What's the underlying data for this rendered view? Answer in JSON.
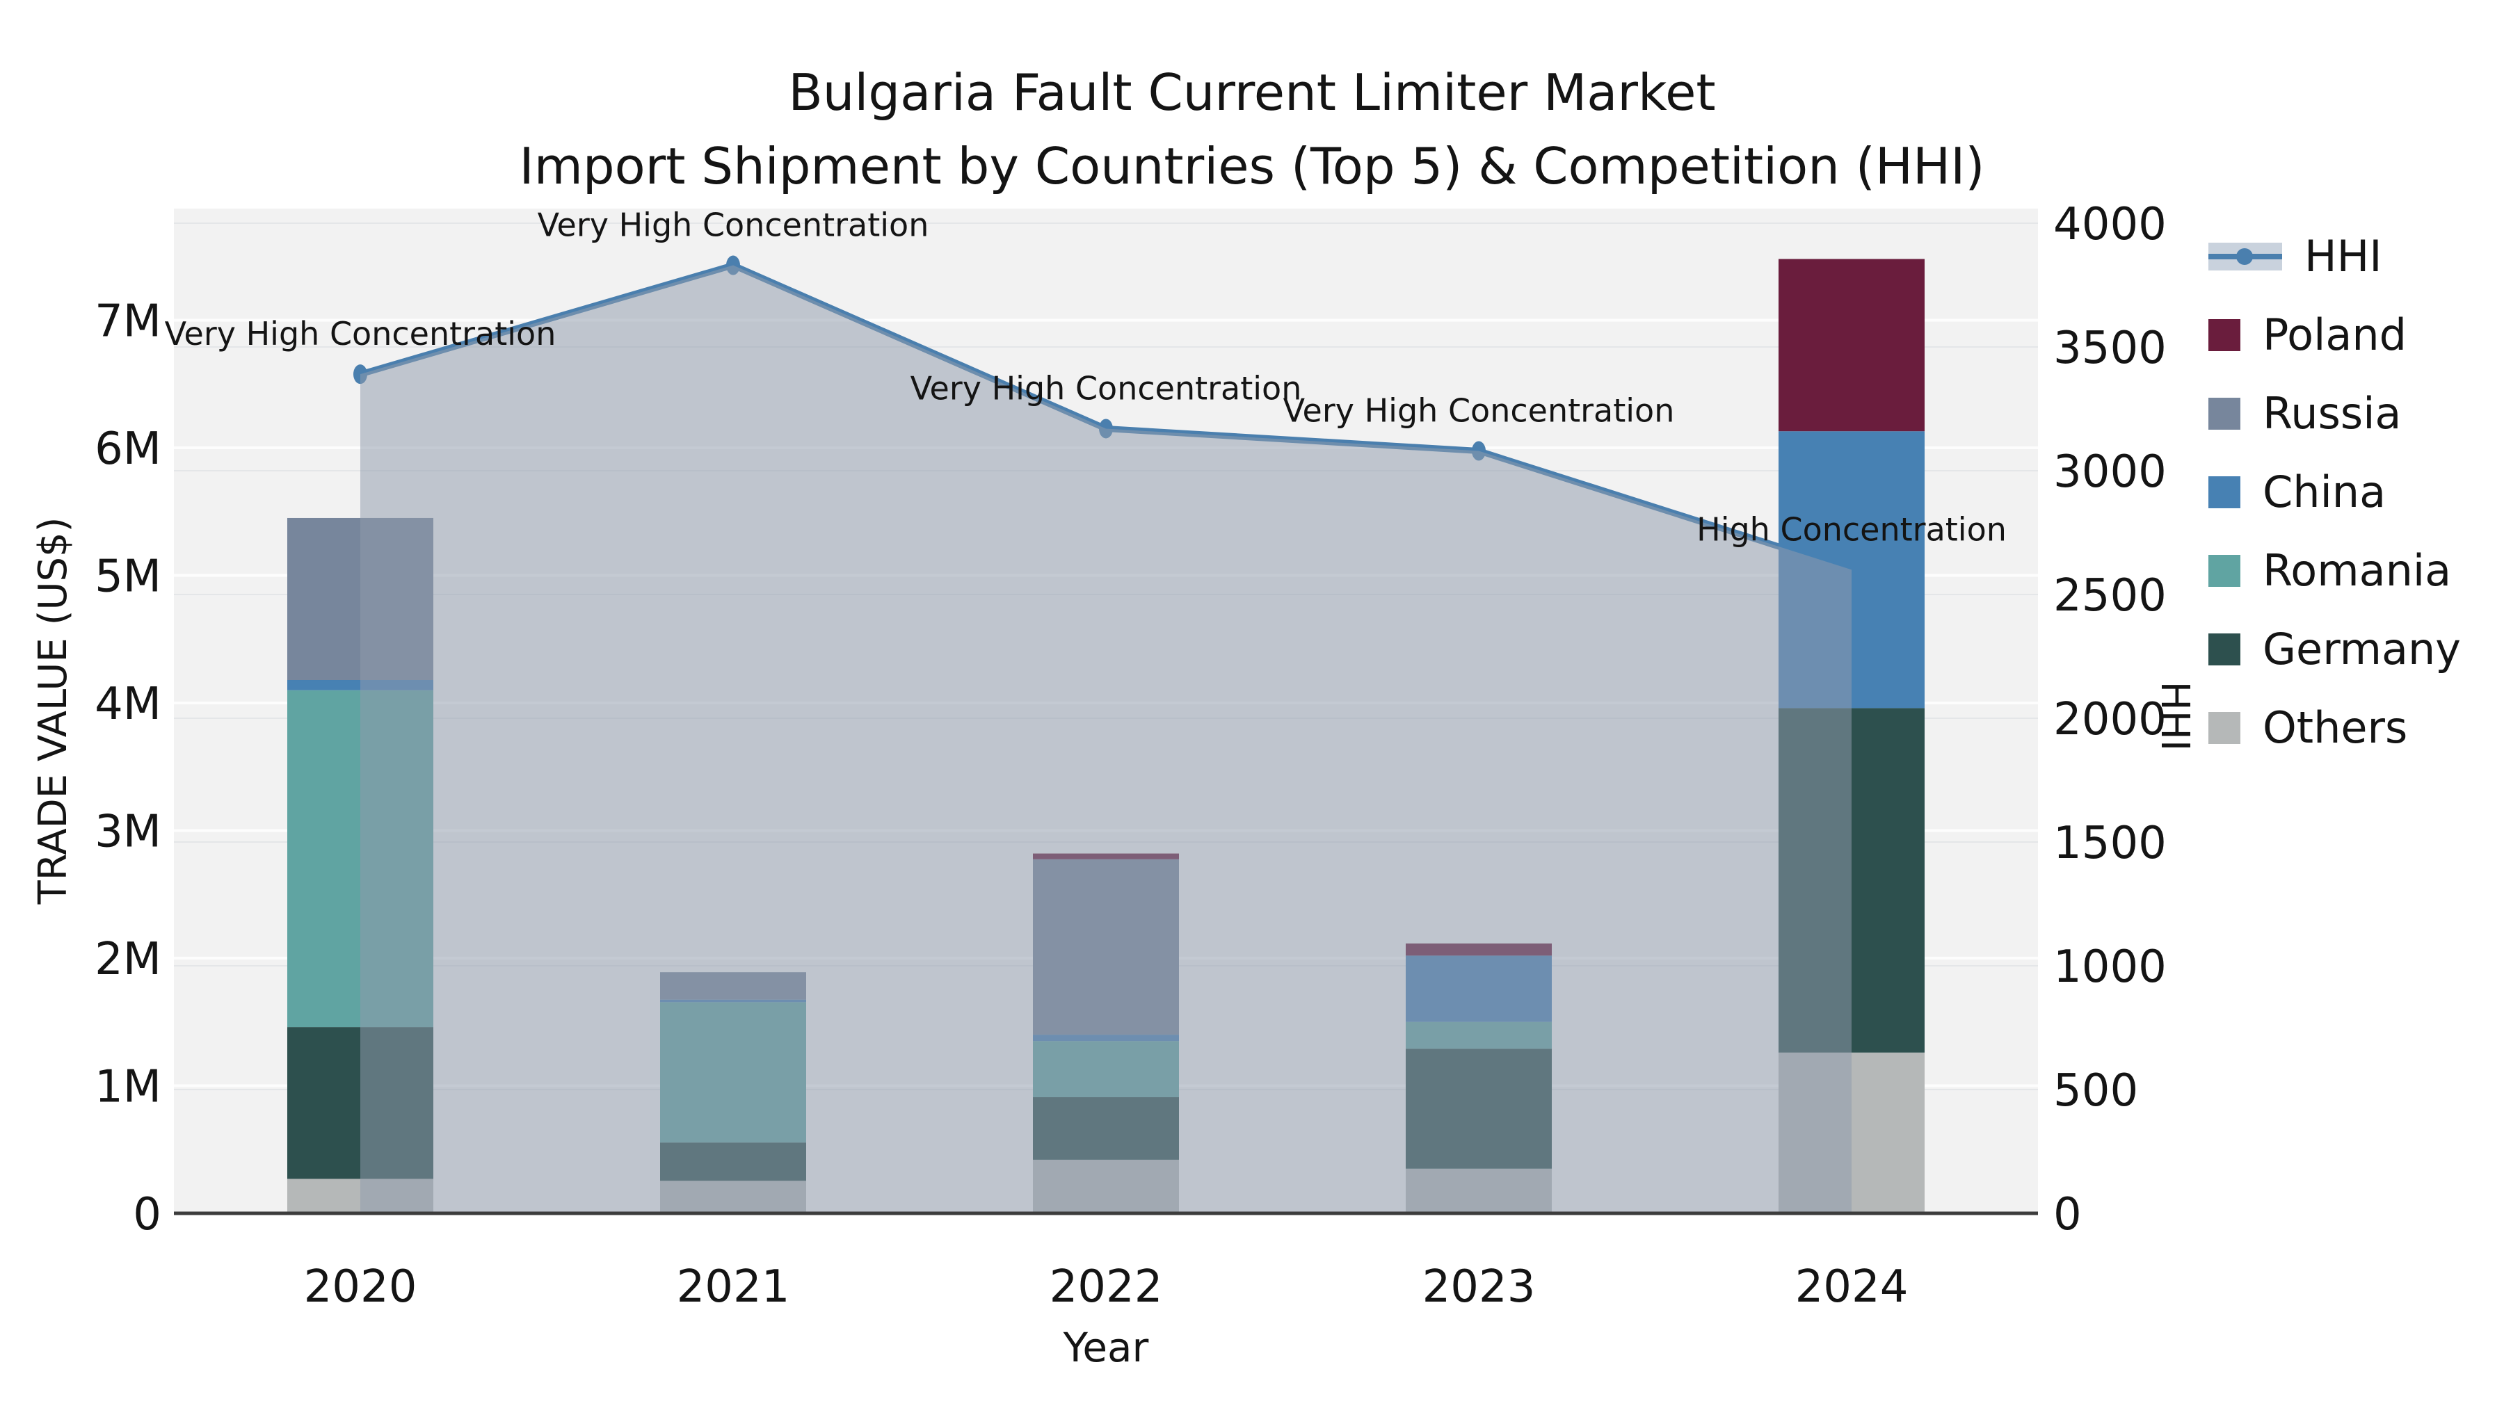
{
  "title": {
    "line1": "Bulgaria Fault Current Limiter Market",
    "line2": "Import Shipment by Countries (Top 5) & Competition (HHI)"
  },
  "chart_data": {
    "type": "bar",
    "subtype": "stacked-bars-with-line-overlay",
    "categories": [
      "2020",
      "2021",
      "2022",
      "2023",
      "2024"
    ],
    "stack_order": [
      "Others",
      "Germany",
      "Romania",
      "China",
      "Russia",
      "Poland"
    ],
    "series": [
      {
        "name": "Poland",
        "color": "#6a1d3d",
        "values": [
          0,
          0,
          45000,
          95000,
          1350000
        ]
      },
      {
        "name": "Russia",
        "color": "#77869c",
        "values": [
          1270000,
          215000,
          1375000,
          0,
          0
        ]
      },
      {
        "name": "China",
        "color": "#4781b3",
        "values": [
          80000,
          20000,
          50000,
          520000,
          2170000
        ]
      },
      {
        "name": "Romania",
        "color": "#60a4a2",
        "values": [
          2640000,
          1100000,
          440000,
          210000,
          0
        ]
      },
      {
        "name": "Germany",
        "color": "#2d504e",
        "values": [
          1190000,
          300000,
          490000,
          940000,
          2700000
        ]
      },
      {
        "name": "Others",
        "color": "#b5b8b8",
        "values": [
          270000,
          255000,
          420000,
          350000,
          1260000
        ]
      }
    ],
    "line_series": {
      "name": "HHI",
      "color": "#4a7fae",
      "area_fill": "rgba(143,156,172,0.52)",
      "values": [
        3390,
        3830,
        3170,
        3080,
        2600
      ],
      "annotations": [
        "Very High Concentration",
        "Very High Concentration",
        "Very High Concentration",
        "Very High Concentration",
        "High Concentration"
      ]
    },
    "xlabel": "Year",
    "ylabel_left": "TRADE VALUE (US$)",
    "ylabel_right": "HHI",
    "y_left_ticks": [
      "0",
      "1M",
      "2M",
      "3M",
      "4M",
      "5M",
      "6M",
      "7M"
    ],
    "y_left_tick_values": [
      0,
      1000000,
      2000000,
      3000000,
      4000000,
      5000000,
      6000000,
      7000000
    ],
    "y_right_ticks": [
      "0",
      "500",
      "1000",
      "1500",
      "2000",
      "2500",
      "3000",
      "3500",
      "4000"
    ],
    "y_right_tick_values": [
      0,
      500,
      1000,
      1500,
      2000,
      2500,
      3000,
      3500,
      4000
    ],
    "ylim_left": [
      0,
      7875000
    ],
    "ylim_right": [
      0,
      4059
    ],
    "grid": true,
    "legend_position": "right",
    "plot_bg": "#f2f2f2"
  },
  "legend": {
    "items": [
      {
        "label": "HHI",
        "type": "line",
        "color": "#4a7fae",
        "band": "#c9d2dd"
      },
      {
        "label": "Poland",
        "type": "swatch",
        "color": "#6a1d3d"
      },
      {
        "label": "Russia",
        "type": "swatch",
        "color": "#77869c"
      },
      {
        "label": "China",
        "type": "swatch",
        "color": "#4781b3"
      },
      {
        "label": "Romania",
        "type": "swatch",
        "color": "#60a4a2"
      },
      {
        "label": "Germany",
        "type": "swatch",
        "color": "#2d504e"
      },
      {
        "label": "Others",
        "type": "swatch",
        "color": "#b5b8b8"
      }
    ]
  }
}
